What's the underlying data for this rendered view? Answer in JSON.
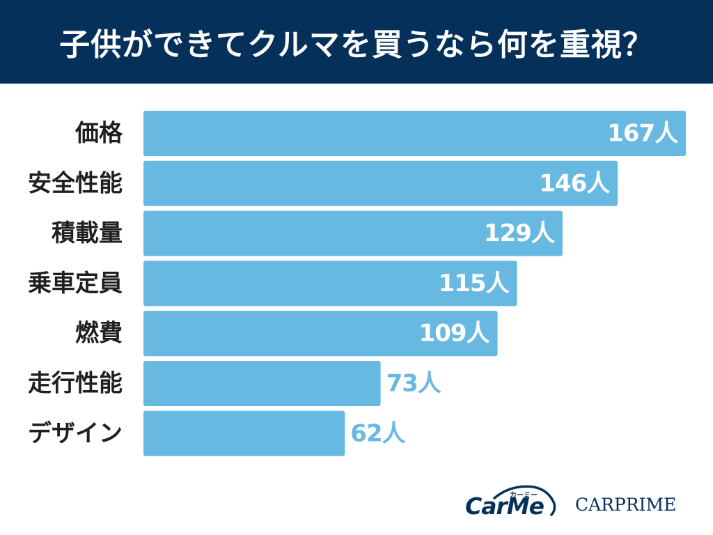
{
  "header": {
    "title": "子供ができてクルマを買うなら何を重視？"
  },
  "chart_data": {
    "type": "bar",
    "orientation": "horizontal",
    "title": "子供ができてクルマを買うなら何を重視？",
    "categories": [
      "価格",
      "安全性能",
      "積載量",
      "乗車定員",
      "燃費",
      "走行性能",
      "デザイン"
    ],
    "values": [
      167,
      146,
      129,
      115,
      109,
      73,
      62
    ],
    "value_labels": [
      "167人",
      "146人",
      "129人",
      "115人",
      "109人",
      "73人",
      "62人"
    ],
    "unit": "人",
    "colors": {
      "bar": "#68b9e2",
      "label_inside": "#ffffff",
      "label_outside": "#68b9e2",
      "category": "#1f1f1f"
    },
    "grid": false,
    "legend": "none"
  },
  "logos": {
    "carme": {
      "text": "CarMe",
      "sub": "カーミー",
      "color": "#05305a"
    },
    "carprime": {
      "text": "CARPRIME"
    }
  }
}
